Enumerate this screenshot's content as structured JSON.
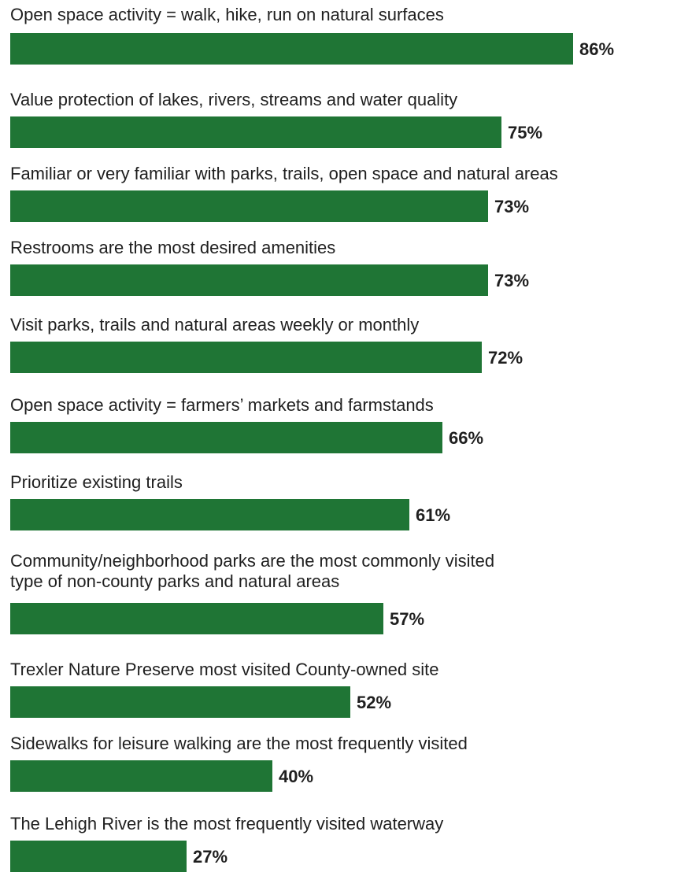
{
  "chart_data": {
    "type": "bar",
    "orientation": "horizontal",
    "categories": [
      "Open space activity = walk, hike, run on natural surfaces",
      "Value protection of lakes, rivers, streams and water quality",
      "Familiar or very familiar with parks, trails, open space and natural areas",
      "Restrooms are the most desired amenities",
      "Visit parks, trails and natural areas weekly or monthly",
      "Open space activity = farmers’ markets and farmstands",
      "Prioritize existing trails",
      "Community/neighborhood parks are the most commonly visited\ntype of non-county parks and natural areas",
      "Trexler Nature Preserve most visited County-owned site",
      "Sidewalks for leisure walking are the most frequently visited",
      "The Lehigh River is the most frequently visited waterway"
    ],
    "values": [
      86,
      75,
      73,
      73,
      72,
      66,
      61,
      57,
      52,
      40,
      27
    ],
    "value_labels": [
      "86%",
      "75%",
      "73%",
      "73%",
      "72%",
      "66%",
      "61%",
      "57%",
      "52%",
      "40%",
      "27%"
    ],
    "bar_color": "#1f7535",
    "xlim": [
      0,
      100
    ],
    "grid": false,
    "legend": "none"
  }
}
